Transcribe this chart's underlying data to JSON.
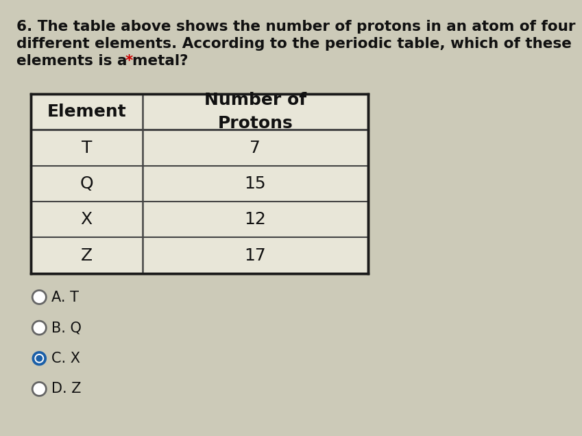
{
  "title_line1": "6. The table above shows the number of protons in an atom of four",
  "title_line2": "different elements. According to the periodic table, which of these",
  "title_line3": "elements is a metal? *",
  "title_fontsize": 15.5,
  "bg_color": "#cccab8",
  "table_bg": "#e8e6d8",
  "header_texts": [
    "Element",
    "Number of\nProtons"
  ],
  "row_data": [
    [
      "T",
      "7"
    ],
    [
      "Q",
      "15"
    ],
    [
      "X",
      "12"
    ],
    [
      "Z",
      "17"
    ]
  ],
  "choices": [
    "A. T",
    "B. Q",
    "C. X",
    "D. Z"
  ],
  "selected_choice": 2,
  "choice_color_selected": "#1a5fa8",
  "choice_ring_color": "#666666",
  "table_border_color": "#1a1a1a",
  "table_line_color": "#444444",
  "text_color": "#111111",
  "asterisk_color": "#cc0000",
  "cell_font_size": 18,
  "header_font_size": 18
}
